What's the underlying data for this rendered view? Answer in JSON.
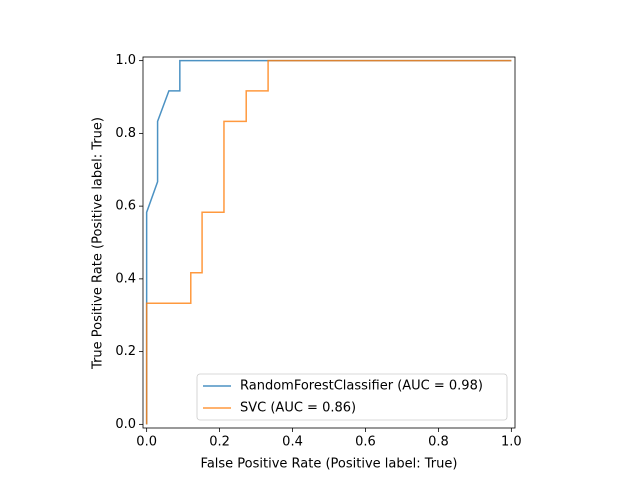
{
  "chart_data": {
    "type": "line",
    "xlabel": "False Positive Rate (Positive label: True)",
    "ylabel": "True Positive Rate (Positive label: True)",
    "xlim": [
      -0.01,
      1.01
    ],
    "ylim": [
      -0.01,
      1.01
    ],
    "xticks": [
      {
        "value": 0,
        "label": "0.0"
      },
      0.2,
      0.4,
      0.6,
      0.8,
      {
        "value": 1,
        "label": "1.0"
      }
    ],
    "yticks": [
      {
        "value": 0,
        "label": "0.0"
      },
      0.2,
      0.4,
      0.6,
      0.8,
      {
        "value": 1,
        "label": "1.0"
      }
    ],
    "legend": "lower right",
    "series": [
      {
        "name": "RandomForestClassifier (AUC = 0.98)",
        "color": "#1f77b4",
        "x": [
          0,
          0,
          0.03,
          0.03,
          0.061,
          0.091,
          0.091,
          1
        ],
        "values": [
          0,
          0.583,
          0.667,
          0.833,
          0.917,
          0.917,
          1,
          1
        ]
      },
      {
        "name": "SVC (AUC = 0.86)",
        "color": "#ff7f0e",
        "x": [
          0,
          0,
          0.121,
          0.121,
          0.152,
          0.152,
          0.212,
          0.212,
          0.273,
          0.273,
          0.333,
          0.333,
          1
        ],
        "values": [
          0,
          0.333,
          0.333,
          0.417,
          0.417,
          0.583,
          0.583,
          0.833,
          0.833,
          0.917,
          0.917,
          1,
          1
        ]
      }
    ]
  }
}
